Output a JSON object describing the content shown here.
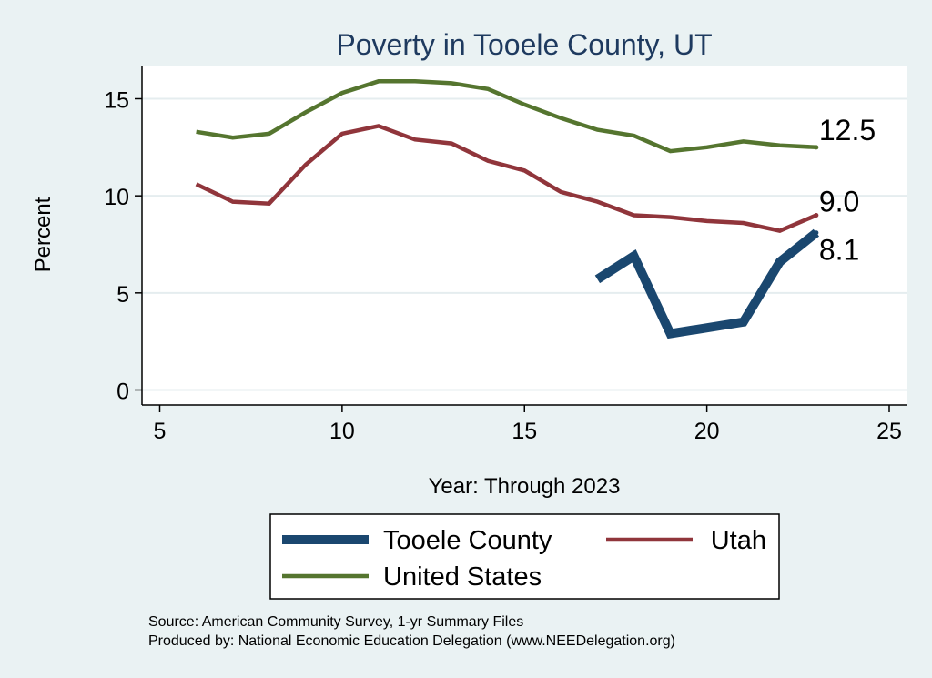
{
  "chart_data": {
    "type": "line",
    "title": "Poverty in Tooele County, UT",
    "xlabel": "Year: Through 2023",
    "ylabel": "Percent",
    "xlim": [
      5,
      25
    ],
    "ylim": [
      0,
      16.5
    ],
    "xticks": [
      5,
      10,
      15,
      20,
      25
    ],
    "yticks": [
      0,
      5,
      10,
      15
    ],
    "grid": true,
    "legend_position": "bottom",
    "series": [
      {
        "name": "Tooele County",
        "color": "#1a476f",
        "x": [
          17,
          18,
          19,
          21,
          22,
          23
        ],
        "values": [
          5.7,
          6.9,
          2.9,
          3.5,
          6.6,
          8.1
        ],
        "end_label": "8.1"
      },
      {
        "name": "Utah",
        "color": "#90353b",
        "x": [
          6,
          7,
          8,
          9,
          10,
          11,
          12,
          13,
          14,
          15,
          16,
          17,
          18,
          19,
          20,
          21,
          22,
          23
        ],
        "values": [
          10.6,
          9.7,
          9.6,
          11.6,
          13.2,
          13.6,
          12.9,
          12.7,
          11.8,
          11.3,
          10.2,
          9.7,
          9.0,
          8.9,
          8.7,
          8.6,
          8.2,
          9.0
        ],
        "end_label": "9.0"
      },
      {
        "name": "United States",
        "color": "#55752f",
        "x": [
          6,
          7,
          8,
          9,
          10,
          11,
          12,
          13,
          14,
          15,
          16,
          17,
          18,
          19,
          20,
          21,
          22,
          23
        ],
        "values": [
          13.3,
          13.0,
          13.2,
          14.3,
          15.3,
          15.9,
          15.9,
          15.8,
          15.5,
          14.7,
          14.0,
          13.4,
          13.1,
          12.3,
          12.5,
          12.8,
          12.6,
          12.5
        ],
        "end_label": "12.5"
      }
    ]
  },
  "source_note": "Source: American Community Survey, 1-yr Summary Files",
  "producer_note": "Produced by: National Economic Education Delegation (www.NEEDelegation.org)"
}
